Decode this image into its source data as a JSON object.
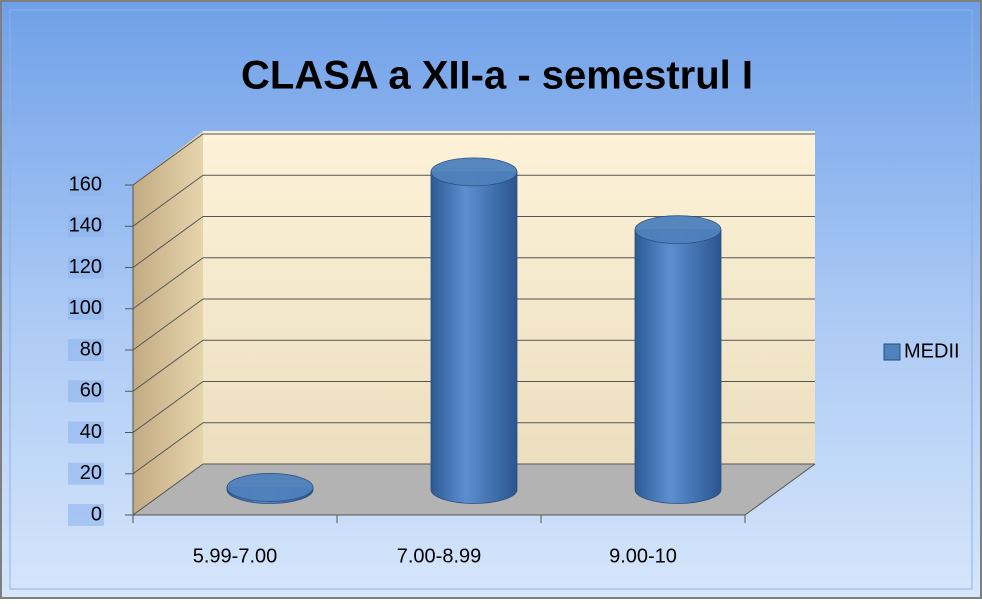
{
  "chart_data": {
    "type": "bar3d",
    "title": "CLASA  a XII-a - semestrul I",
    "categories": [
      "5.99-7.00",
      "7.00-8.99",
      "9.00-10"
    ],
    "series": [
      {
        "name": "MEDII",
        "color": "#4f81bd",
        "values": [
          1,
          154,
          126
        ]
      }
    ],
    "ylim": [
      0,
      160
    ],
    "yticks": [
      0,
      20,
      40,
      60,
      80,
      100,
      120,
      140,
      160
    ],
    "grid": true,
    "legend": "right"
  }
}
